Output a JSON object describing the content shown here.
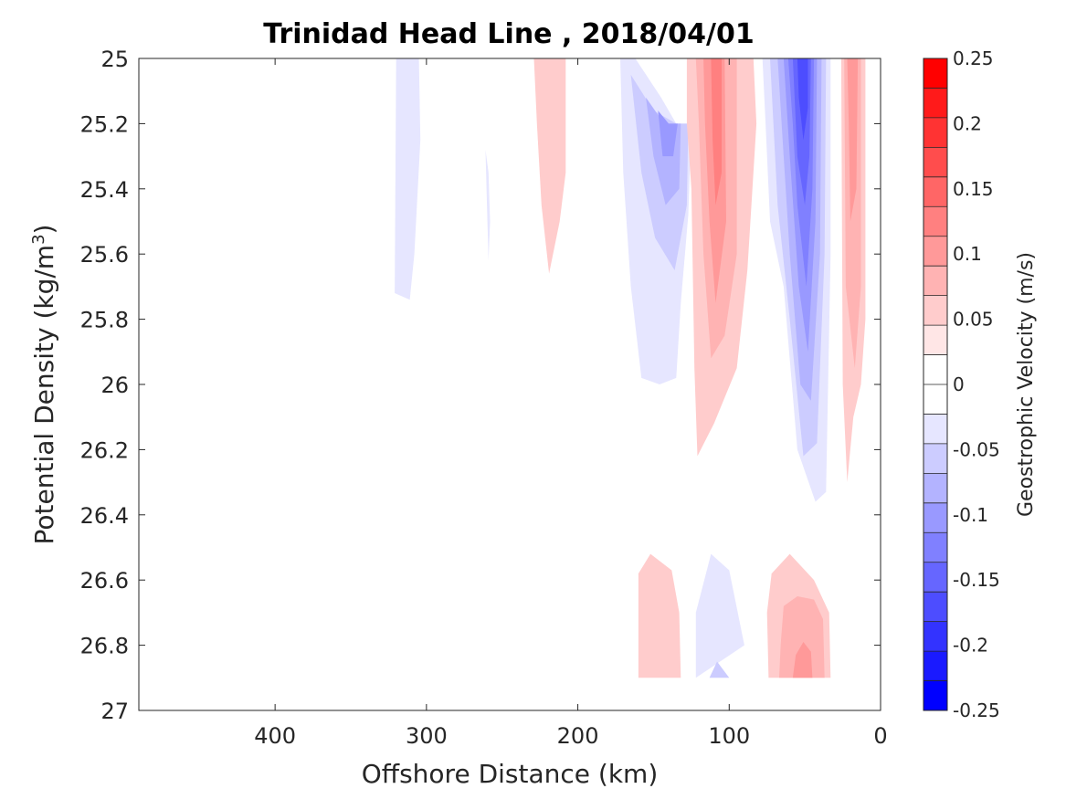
{
  "chart_data": {
    "type": "contour",
    "title": "Trinidad Head Line , 2018/04/01",
    "xlabel": "Offshore Distance (km)",
    "ylabel": "Potential Density (kg/m",
    "ylabel_sup": "3",
    "ylabel_close": ")",
    "xlim": [
      490,
      0
    ],
    "ylim": [
      25,
      27
    ],
    "y_reversed": true,
    "x_reversed": true,
    "xticks": [
      400,
      300,
      200,
      100,
      0
    ],
    "xtick_labels": [
      "400",
      "300",
      "200",
      "100",
      "0"
    ],
    "yticks": [
      25,
      25.2,
      25.4,
      25.6,
      25.8,
      26,
      26.2,
      26.4,
      26.6,
      26.8,
      27
    ],
    "ytick_labels": [
      "25",
      "25.2",
      "25.4",
      "25.6",
      "25.8",
      "26",
      "26.2",
      "26.4",
      "26.6",
      "26.8",
      "27"
    ],
    "colorbar": {
      "label": "Geostrophic Velocity (m/s)",
      "range": [
        -0.25,
        0.25
      ],
      "levels": [
        -0.25,
        -0.225,
        -0.2,
        -0.175,
        -0.15,
        -0.125,
        -0.1,
        -0.075,
        -0.05,
        -0.025,
        0,
        0.025,
        0.05,
        0.075,
        0.1,
        0.125,
        0.15,
        0.175,
        0.2,
        0.225,
        0.25
      ],
      "tick_values": [
        0.25,
        0.2,
        0.15,
        0.1,
        0.05,
        0,
        -0.05,
        -0.1,
        -0.15,
        -0.2,
        -0.25
      ],
      "tick_labels": [
        "0.25",
        "0.2",
        "0.15",
        "0.1",
        "0.05",
        "0",
        "-0.05",
        "-0.1",
        "-0.15",
        "-0.2",
        "-0.25"
      ],
      "colors_top_to_bottom": [
        "#ff0000",
        "#ff1a1a",
        "#ff3333",
        "#ff4d4d",
        "#ff6666",
        "#ff8080",
        "#ff9999",
        "#ffb3b3",
        "#ffcccc",
        "#ffe6e6",
        "#ffffff",
        "#ffffff",
        "#e6e6ff",
        "#ccccff",
        "#b3b3ff",
        "#9999ff",
        "#8080ff",
        "#6666ff",
        "#4d4dff",
        "#3333ff",
        "#1a1aff",
        "#0000ff"
      ]
    },
    "contour_regions": [
      {
        "velocity": -0.025,
        "points": [
          [
            320,
            25.0
          ],
          [
            305,
            25.0
          ],
          [
            304,
            25.25
          ],
          [
            308,
            25.6
          ],
          [
            311,
            25.74
          ],
          [
            321,
            25.72
          ]
        ]
      },
      {
        "velocity": -0.025,
        "points": [
          [
            261,
            25.28
          ],
          [
            260,
            25.45
          ],
          [
            259,
            25.62
          ],
          [
            258,
            25.5
          ],
          [
            259,
            25.35
          ]
        ]
      },
      {
        "velocity": 0.025,
        "points": [
          [
            229,
            25.0
          ],
          [
            208,
            25.0
          ],
          [
            208,
            25.35
          ],
          [
            212,
            25.5
          ],
          [
            219,
            25.66
          ],
          [
            224,
            25.45
          ],
          [
            227,
            25.2
          ]
        ]
      },
      {
        "velocity": -0.025,
        "points": [
          [
            172,
            25.0
          ],
          [
            162,
            25.0
          ],
          [
            145,
            25.12
          ],
          [
            135,
            25.2
          ],
          [
            125,
            25.2
          ],
          [
            127,
            25.48
          ],
          [
            132,
            25.75
          ],
          [
            135,
            25.98
          ],
          [
            146,
            26.0
          ],
          [
            158,
            25.98
          ],
          [
            165,
            25.7
          ],
          [
            170,
            25.35
          ]
        ]
      },
      {
        "velocity": -0.05,
        "points": [
          [
            165,
            25.05
          ],
          [
            150,
            25.16
          ],
          [
            135,
            25.2
          ],
          [
            127,
            25.2
          ],
          [
            128,
            25.45
          ],
          [
            136,
            25.65
          ],
          [
            149,
            25.55
          ],
          [
            158,
            25.35
          ]
        ]
      },
      {
        "velocity": -0.075,
        "points": [
          [
            155,
            25.12
          ],
          [
            143,
            25.2
          ],
          [
            132,
            25.2
          ],
          [
            133,
            25.4
          ],
          [
            142,
            25.45
          ],
          [
            150,
            25.3
          ]
        ]
      },
      {
        "velocity": -0.1,
        "points": [
          [
            147,
            25.16
          ],
          [
            140,
            25.2
          ],
          [
            134,
            25.2
          ],
          [
            137,
            25.3
          ],
          [
            144,
            25.3
          ]
        ]
      },
      {
        "velocity": 0.025,
        "points": [
          [
            128,
            25.0
          ],
          [
            84,
            25.0
          ],
          [
            82,
            25.2
          ],
          [
            88,
            25.65
          ],
          [
            95,
            25.95
          ],
          [
            110,
            26.12
          ],
          [
            121,
            26.22
          ],
          [
            123,
            25.95
          ],
          [
            125,
            25.4
          ],
          [
            128,
            25.2
          ]
        ]
      },
      {
        "velocity": 0.05,
        "points": [
          [
            122,
            25.0
          ],
          [
            95,
            25.0
          ],
          [
            95,
            25.6
          ],
          [
            103,
            25.85
          ],
          [
            112,
            25.92
          ],
          [
            117,
            25.6
          ],
          [
            120,
            25.2
          ]
        ]
      },
      {
        "velocity": 0.075,
        "points": [
          [
            117,
            25.0
          ],
          [
            103,
            25.0
          ],
          [
            102,
            25.5
          ],
          [
            109,
            25.75
          ],
          [
            113,
            25.5
          ],
          [
            116,
            25.2
          ]
        ]
      },
      {
        "velocity": 0.1,
        "points": [
          [
            112,
            25.0
          ],
          [
            105,
            25.0
          ],
          [
            105,
            25.35
          ],
          [
            109,
            25.45
          ],
          [
            111,
            25.25
          ]
        ]
      },
      {
        "velocity": -0.025,
        "points": [
          [
            78,
            25.0
          ],
          [
            33,
            25.0
          ],
          [
            33,
            25.6
          ],
          [
            36,
            26.33
          ],
          [
            43,
            26.36
          ],
          [
            55,
            26.2
          ],
          [
            64,
            25.7
          ],
          [
            73,
            25.5
          ],
          [
            76,
            25.2
          ]
        ]
      },
      {
        "velocity": -0.05,
        "points": [
          [
            73,
            25.0
          ],
          [
            36,
            25.0
          ],
          [
            37,
            25.6
          ],
          [
            42,
            26.18
          ],
          [
            51,
            26.22
          ],
          [
            60,
            25.8
          ],
          [
            68,
            25.45
          ]
        ]
      },
      {
        "velocity": -0.075,
        "points": [
          [
            68,
            25.0
          ],
          [
            39,
            25.0
          ],
          [
            40,
            25.6
          ],
          [
            46,
            26.05
          ],
          [
            53,
            26.0
          ],
          [
            60,
            25.6
          ],
          [
            64,
            25.3
          ]
        ]
      },
      {
        "velocity": -0.1,
        "points": [
          [
            64,
            25.0
          ],
          [
            42,
            25.0
          ],
          [
            43,
            25.5
          ],
          [
            48,
            25.9
          ],
          [
            54,
            25.7
          ],
          [
            60,
            25.3
          ]
        ]
      },
      {
        "velocity": -0.125,
        "points": [
          [
            61,
            25.0
          ],
          [
            44,
            25.0
          ],
          [
            45,
            25.4
          ],
          [
            49,
            25.7
          ],
          [
            55,
            25.45
          ],
          [
            58,
            25.2
          ]
        ]
      },
      {
        "velocity": -0.15,
        "points": [
          [
            58,
            25.0
          ],
          [
            46,
            25.0
          ],
          [
            47,
            25.3
          ],
          [
            50,
            25.45
          ],
          [
            55,
            25.3
          ]
        ]
      },
      {
        "velocity": -0.175,
        "points": [
          [
            55,
            25.0
          ],
          [
            48,
            25.0
          ],
          [
            48,
            25.15
          ],
          [
            51,
            25.25
          ],
          [
            54,
            25.12
          ]
        ]
      },
      {
        "velocity": 0.025,
        "points": [
          [
            26,
            25.0
          ],
          [
            10,
            25.0
          ],
          [
            10,
            25.8
          ],
          [
            13,
            26.0
          ],
          [
            18,
            26.1
          ],
          [
            22,
            26.3
          ],
          [
            25,
            26.0
          ]
        ]
      },
      {
        "velocity": 0.05,
        "points": [
          [
            24,
            25.0
          ],
          [
            13,
            25.0
          ],
          [
            13,
            25.7
          ],
          [
            17,
            25.95
          ],
          [
            23,
            25.7
          ]
        ]
      },
      {
        "velocity": 0.075,
        "points": [
          [
            22,
            25.0
          ],
          [
            15,
            25.0
          ],
          [
            16,
            25.4
          ],
          [
            20,
            25.5
          ],
          [
            21,
            25.2
          ]
        ]
      },
      {
        "velocity": 0.025,
        "points": [
          [
            160,
            26.9
          ],
          [
            132,
            26.9
          ],
          [
            133,
            26.7
          ],
          [
            138,
            26.57
          ],
          [
            152,
            26.52
          ],
          [
            160,
            26.58
          ]
        ]
      },
      {
        "velocity": -0.025,
        "points": [
          [
            122,
            26.9
          ],
          [
            90,
            26.8
          ],
          [
            100,
            26.57
          ],
          [
            112,
            26.52
          ],
          [
            122,
            26.7
          ]
        ]
      },
      {
        "velocity": -0.05,
        "points": [
          [
            113,
            26.9
          ],
          [
            100,
            26.9
          ],
          [
            108,
            26.85
          ]
        ]
      },
      {
        "velocity": 0.025,
        "points": [
          [
            74,
            26.9
          ],
          [
            33,
            26.9
          ],
          [
            34,
            26.7
          ],
          [
            44,
            26.6
          ],
          [
            60,
            26.52
          ],
          [
            72,
            26.58
          ],
          [
            75,
            26.7
          ]
        ]
      },
      {
        "velocity": 0.05,
        "points": [
          [
            67,
            26.9
          ],
          [
            37,
            26.9
          ],
          [
            38,
            26.72
          ],
          [
            44,
            26.66
          ],
          [
            55,
            26.65
          ],
          [
            64,
            26.68
          ],
          [
            66,
            26.8
          ]
        ]
      },
      {
        "velocity": 0.075,
        "points": [
          [
            58,
            26.9
          ],
          [
            45,
            26.9
          ],
          [
            46,
            26.82
          ],
          [
            51,
            26.79
          ],
          [
            56,
            26.83
          ]
        ]
      }
    ]
  }
}
